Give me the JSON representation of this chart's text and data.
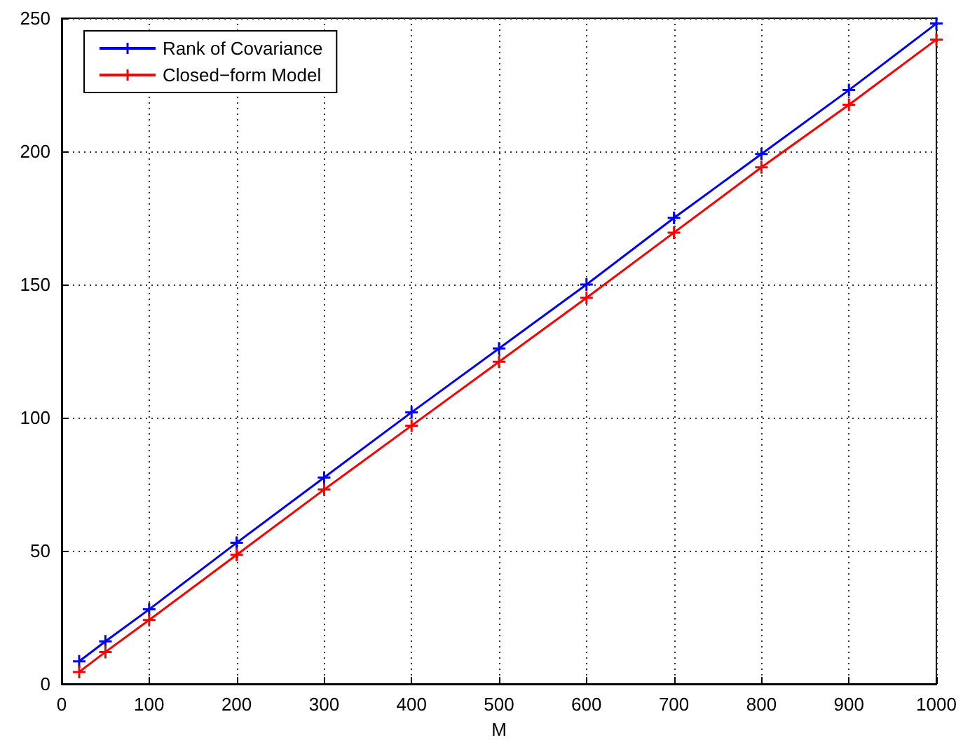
{
  "chart_data": {
    "type": "line",
    "xlabel": "M",
    "x": [
      20,
      50,
      100,
      200,
      300,
      400,
      500,
      600,
      700,
      800,
      900,
      1000
    ],
    "series": [
      {
        "name": "Rank of Covariance",
        "color": "#0000ff",
        "marker": "cross",
        "values": [
          8.5,
          16,
          28,
          53,
          77.5,
          102,
          126,
          150,
          175,
          199,
          223,
          248
        ]
      },
      {
        "name": "Closed−form Model",
        "color": "#ff0000",
        "marker": "cross",
        "values": [
          4.5,
          12,
          24,
          48.5,
          73,
          97,
          121,
          145,
          169.5,
          194,
          217.5,
          242
        ]
      }
    ],
    "xlim": [
      0,
      1000
    ],
    "xticks": [
      0,
      100,
      200,
      300,
      400,
      500,
      600,
      700,
      800,
      900,
      1000
    ],
    "ylim": [
      0,
      250
    ],
    "yticks": [
      0,
      50,
      100,
      150,
      200,
      250
    ],
    "grid": true,
    "legend": "top left",
    "line_style": "solid"
  }
}
